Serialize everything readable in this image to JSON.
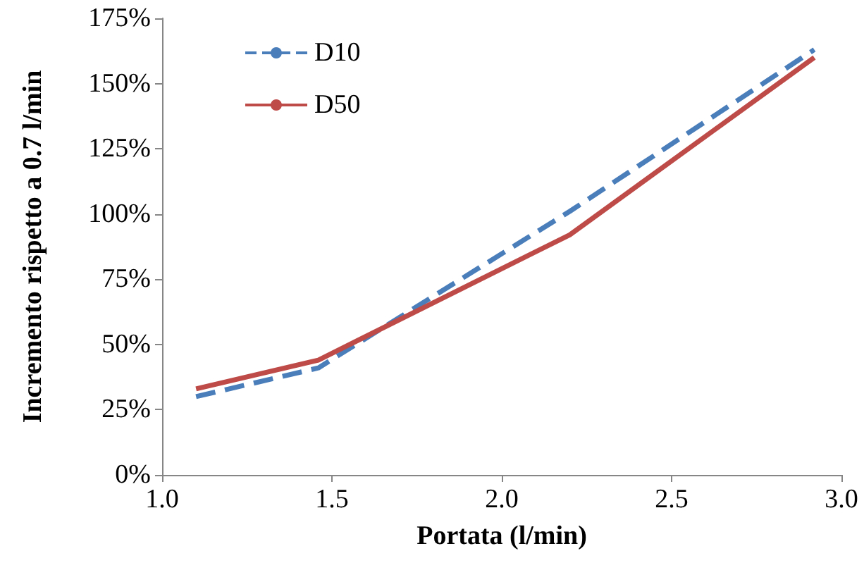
{
  "chart_data": {
    "type": "line",
    "xlabel": "Portata (l/min)",
    "ylabel": "Incremento rispetto a 0.7 l/min",
    "x": [
      1.1,
      1.46,
      2.2,
      2.92
    ],
    "series": [
      {
        "name": "D10",
        "color": "#4a7ebb",
        "line_style": "dashed",
        "values": [
          30,
          41,
          101,
          163
        ]
      },
      {
        "name": "D50",
        "color": "#be4b48",
        "line_style": "solid",
        "values": [
          33,
          44,
          92,
          160
        ]
      }
    ],
    "xlim": [
      1.0,
      3.0
    ],
    "xticks": [
      {
        "value": 1.0,
        "label": "1.0"
      },
      {
        "value": 1.5,
        "label": "1.5"
      },
      {
        "value": 2.0,
        "label": "2.0"
      },
      {
        "value": 2.5,
        "label": "2.5"
      },
      {
        "value": 3.0,
        "label": "3.0"
      }
    ],
    "ylim": [
      0,
      175
    ],
    "yticks": [
      {
        "value": 0,
        "label": "0%"
      },
      {
        "value": 25,
        "label": "25%"
      },
      {
        "value": 50,
        "label": "50%"
      },
      {
        "value": 75,
        "label": "75%"
      },
      {
        "value": 100,
        "label": "100%"
      },
      {
        "value": 125,
        "label": "125%"
      },
      {
        "value": 150,
        "label": "150%"
      },
      {
        "value": 175,
        "label": "175%"
      }
    ],
    "grid": false,
    "legend": "top left",
    "marker": "none"
  }
}
